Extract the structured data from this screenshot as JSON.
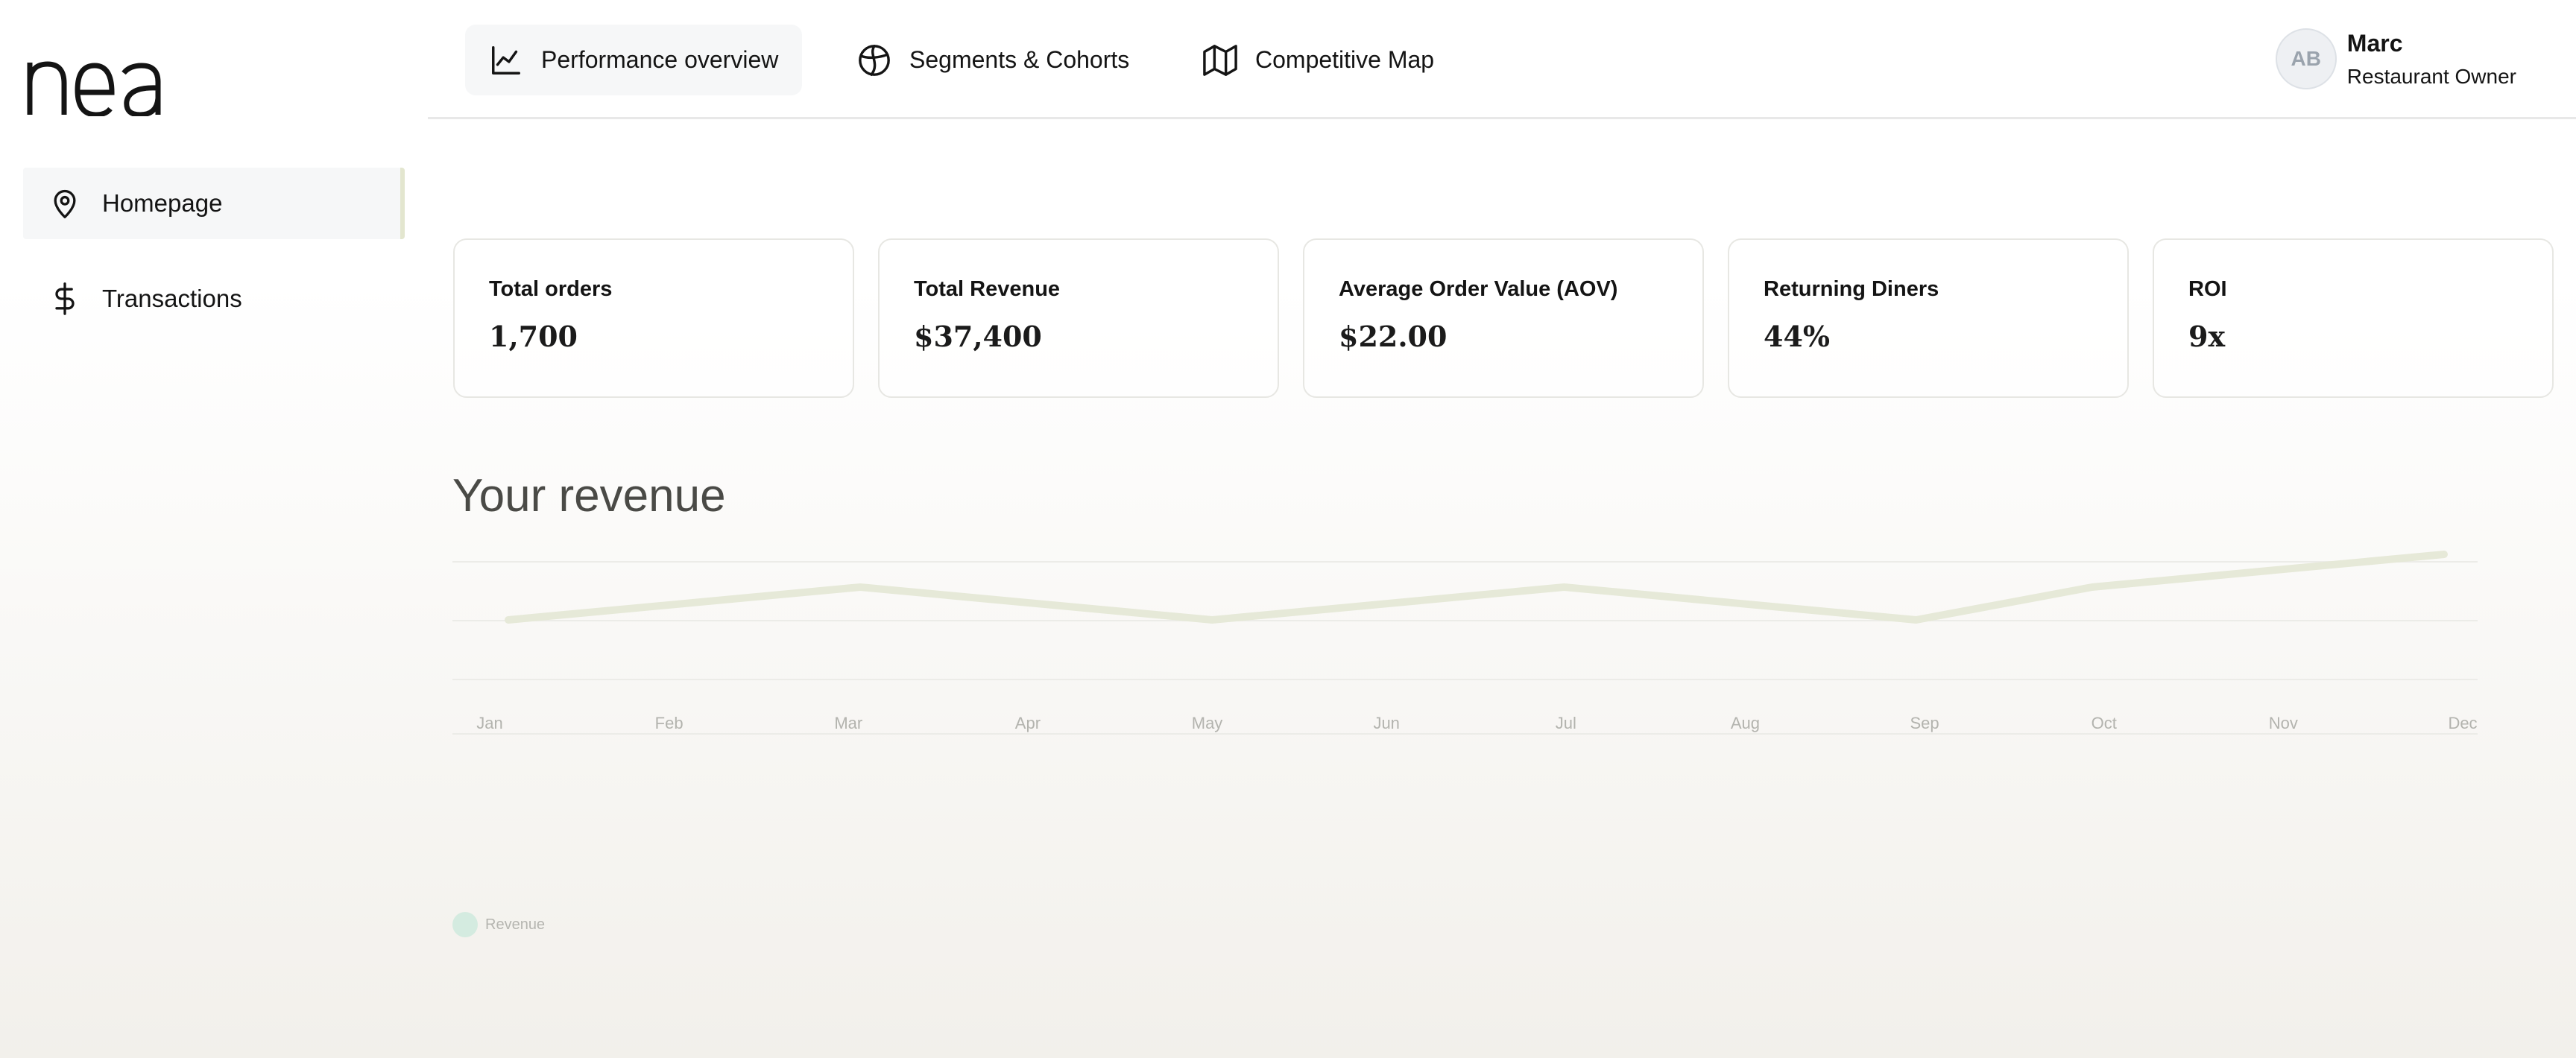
{
  "sidebar": {
    "logo_text": "nea",
    "items": [
      {
        "label": "Homepage",
        "icon": "map-pin-icon",
        "active": true
      },
      {
        "label": "Transactions",
        "icon": "dollar-icon",
        "active": false
      }
    ]
  },
  "header": {
    "tabs": [
      {
        "label": "Performance overview",
        "icon": "line-chart-icon",
        "active": true
      },
      {
        "label": "Segments & Cohorts",
        "icon": "pie-chart-icon",
        "active": false
      },
      {
        "label": "Competitive Map",
        "icon": "map-icon",
        "active": false
      }
    ],
    "user": {
      "initials": "AB",
      "name": "Marc",
      "role": "Restaurant Owner"
    }
  },
  "kpis": [
    {
      "label": "Total orders",
      "value": "1,700"
    },
    {
      "label": "Total Revenue",
      "value": "$37,400"
    },
    {
      "label": "Average Order Value (AOV)",
      "value": "$22.00"
    },
    {
      "label": "Returning Diners",
      "value": "44%"
    },
    {
      "label": "ROI",
      "value": "9x"
    }
  ],
  "colors": {
    "line": "#e6e9d8",
    "legend_dot": "#d4ebe0"
  },
  "chart_data": {
    "type": "line",
    "title": "Your revenue",
    "categories": [
      "Jan",
      "Feb",
      "Mar",
      "Apr",
      "May",
      "Jun",
      "Jul",
      "Aug",
      "Sep",
      "Oct",
      "Nov",
      "Dec"
    ],
    "series": [
      {
        "name": "Revenue",
        "values": [
          2,
          null,
          3,
          null,
          2,
          null,
          3,
          null,
          2,
          3,
          null,
          4
        ]
      }
    ],
    "ylim": [
      0,
      5
    ],
    "grid": true,
    "legend": "bottom-left"
  }
}
